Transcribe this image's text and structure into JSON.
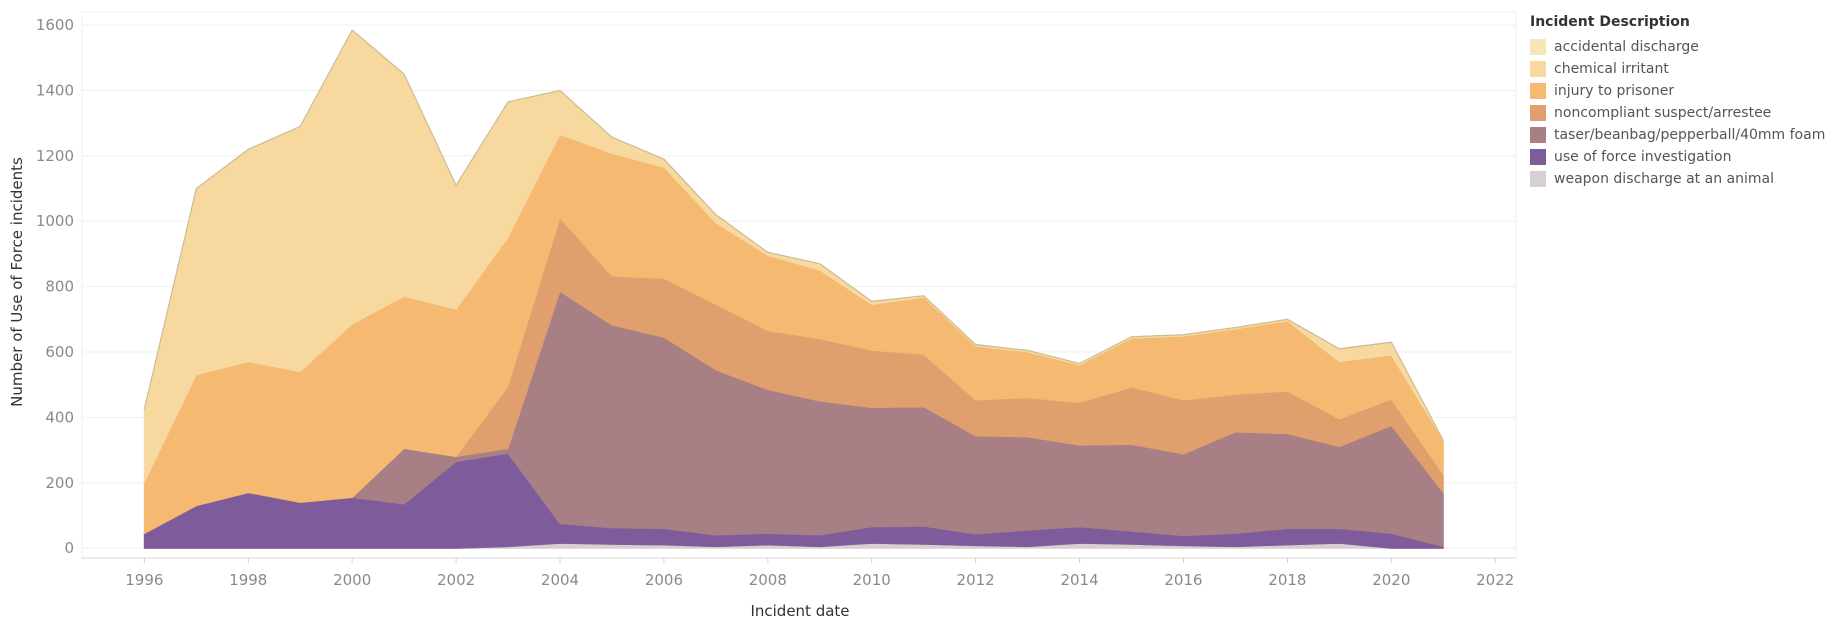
{
  "chart_data": {
    "type": "area",
    "stacked": true,
    "xlabel": "Incident date",
    "ylabel": "Number of Use of Force incidents",
    "xlim": [
      1994.8,
      2022.4
    ],
    "ylim": [
      -30,
      1640
    ],
    "x_ticks": [
      "1996",
      "1998",
      "2000",
      "2002",
      "2004",
      "2006",
      "2008",
      "2010",
      "2012",
      "2014",
      "2016",
      "2018",
      "2020",
      "2022"
    ],
    "y_ticks": [
      "0",
      "200",
      "400",
      "600",
      "800",
      "1000",
      "1200",
      "1400",
      "1600"
    ],
    "grid": true,
    "legend_position": "right",
    "legend_title": "Incident Description",
    "x": [
      1996,
      1997,
      1998,
      1999,
      2000,
      2001,
      2002,
      2003,
      2004,
      2005,
      2006,
      2007,
      2008,
      2009,
      2010,
      2011,
      2012,
      2013,
      2014,
      2015,
      2016,
      2017,
      2018,
      2019,
      2020,
      2021
    ],
    "series": [
      {
        "name": "weapon discharge at an animal",
        "color": "#d8cfd1",
        "values": [
          0,
          0,
          0,
          0,
          0,
          0,
          0,
          5,
          15,
          12,
          10,
          5,
          10,
          5,
          15,
          12,
          8,
          5,
          15,
          12,
          8,
          5,
          10,
          15,
          0,
          0
        ]
      },
      {
        "name": "use of force investigation",
        "color": "#7e5c9b",
        "values": [
          45,
          130,
          170,
          140,
          155,
          135,
          265,
          285,
          60,
          50,
          50,
          35,
          35,
          35,
          50,
          55,
          35,
          50,
          50,
          40,
          30,
          40,
          50,
          45,
          45,
          5
        ]
      },
      {
        "name": "taser/beanbag/pepperball/40mm foam",
        "color": "#a77f85",
        "values": [
          0,
          0,
          0,
          0,
          0,
          170,
          15,
          15,
          710,
          620,
          585,
          505,
          440,
          410,
          365,
          365,
          300,
          285,
          250,
          265,
          250,
          310,
          290,
          250,
          330,
          165
        ]
      },
      {
        "name": "noncompliant suspect/arrestee",
        "color": "#e0a06e",
        "values": [
          0,
          0,
          0,
          0,
          0,
          0,
          0,
          190,
          225,
          150,
          180,
          200,
          180,
          190,
          175,
          160,
          110,
          120,
          130,
          175,
          165,
          115,
          130,
          85,
          80,
          55
        ]
      },
      {
        "name": "injury to prisoner",
        "color": "#f5b972",
        "values": [
          155,
          400,
          400,
          400,
          530,
          465,
          450,
          455,
          255,
          375,
          340,
          250,
          230,
          210,
          140,
          175,
          165,
          140,
          115,
          150,
          195,
          200,
          215,
          175,
          135,
          105
        ]
      },
      {
        "name": "chemical irritant",
        "color": "#f7d89e",
        "values": [
          225,
          570,
          650,
          750,
          900,
          680,
          380,
          415,
          135,
          50,
          25,
          25,
          10,
          20,
          10,
          5,
          5,
          5,
          5,
          5,
          5,
          5,
          5,
          40,
          40,
          0
        ]
      },
      {
        "name": "accidental discharge",
        "color": "#f7e6b7",
        "values": [
          0,
          0,
          0,
          0,
          0,
          0,
          0,
          0,
          0,
          0,
          0,
          0,
          0,
          0,
          0,
          0,
          0,
          0,
          0,
          0,
          0,
          0,
          0,
          0,
          0,
          0
        ]
      }
    ]
  }
}
